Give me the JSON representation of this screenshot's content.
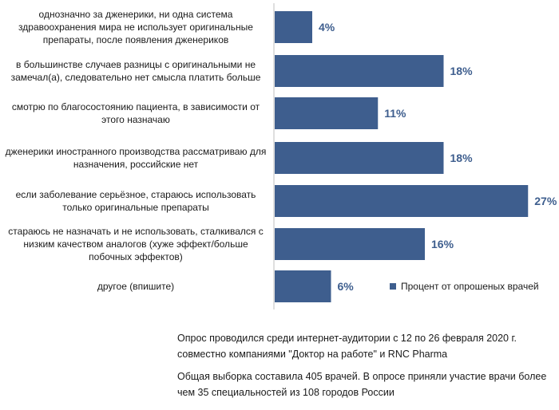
{
  "chart_data": {
    "type": "bar",
    "orientation": "horizontal",
    "categories": [
      "однозначно за дженерики, ни одна система здравоохранения мира не использует оригинальные препараты, после появления дженериков",
      "в большинстве случаев разницы с оригинальными не замечал(а), следовательно нет смысла платить больше",
      "смотрю по благосостоянию пациента, в зависимости от этого назначаю",
      "дженерики иностранного производства рассматриваю для назначения, российские нет",
      "если заболевание серьёзное, стараюсь использовать только оригинальные препараты",
      "стараюсь не назначать и не использовать, сталкивался с низким качеством аналогов (хуже эффект/больше побочных эффектов)",
      "другое (впишите)"
    ],
    "series": [
      {
        "name": "Процент от опрошеных врачей",
        "values": [
          4,
          18,
          11,
          18,
          27,
          16,
          6
        ],
        "data_labels": [
          "4%",
          "18%",
          "11%",
          "18%",
          "27%",
          "16%",
          "6%"
        ],
        "color": "#3e5e8e"
      }
    ],
    "legend_position": "bottom-right",
    "grid": false
  },
  "notes": [
    "Опрос проводился среди интернет-аудитории с 12 по 26 февраля 2020 г. совместно  компаниями \"Доктор на работе\" и RNC Pharma",
    "Общая выборка составила 405 врачей. В опросе приняли участие врачи более чем 35 специальностей из 108 городов России"
  ]
}
